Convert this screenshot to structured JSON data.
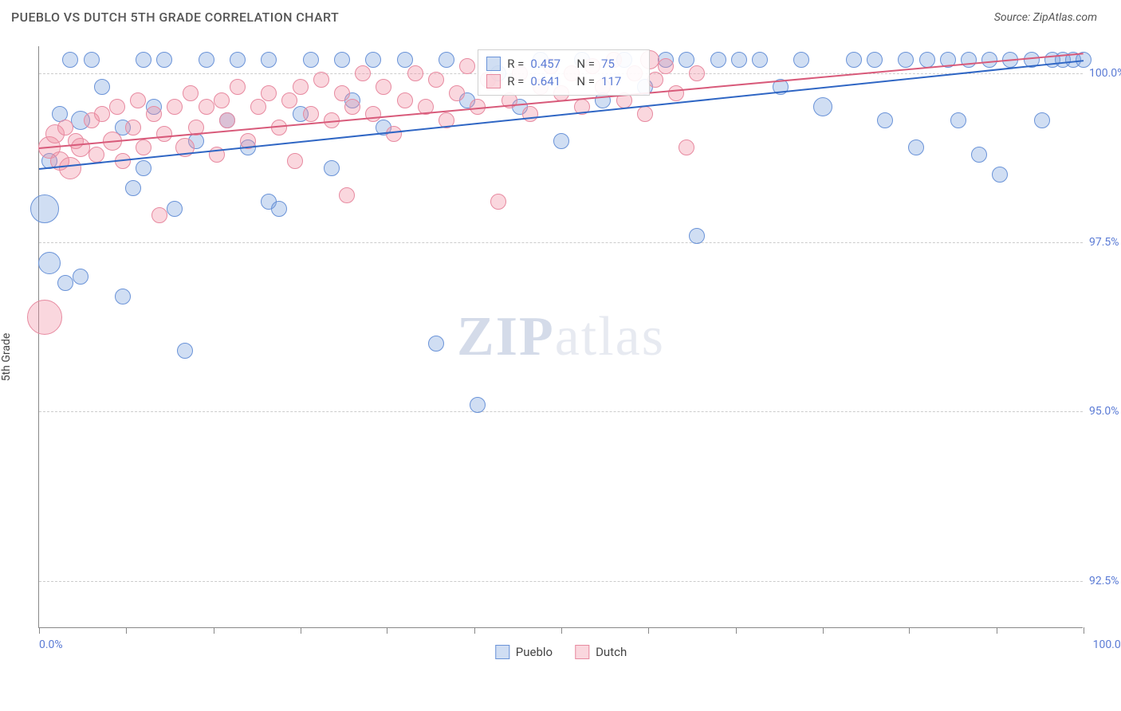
{
  "header": {
    "title": "PUEBLO VS DUTCH 5TH GRADE CORRELATION CHART",
    "source": "Source: ZipAtlas.com"
  },
  "ylabel": "5th Grade",
  "watermark": {
    "bold": "ZIP",
    "rest": "atlas"
  },
  "chart": {
    "type": "scatter",
    "background_color": "#ffffff",
    "grid_color": "#cccccc",
    "axis_color": "#888888",
    "label_color": "#5b7bd5",
    "xlim": [
      0,
      100
    ],
    "ylim": [
      91.8,
      100.4
    ],
    "x_end_labels": {
      "min": "0.0%",
      "max": "100.0%"
    },
    "y_ticks": [
      {
        "v": 100.0,
        "label": "100.0%"
      },
      {
        "v": 97.5,
        "label": "97.5%"
      },
      {
        "v": 95.0,
        "label": "95.0%"
      },
      {
        "v": 92.5,
        "label": "92.5%"
      }
    ],
    "x_tick_positions": [
      0,
      8.3,
      16.7,
      25,
      33.3,
      41.7,
      50,
      58.3,
      66.7,
      75,
      83.3,
      91.7,
      100
    ],
    "series": [
      {
        "name": "Pueblo",
        "fill": "rgba(120,160,220,0.35)",
        "stroke": "#6a93d8",
        "trend_color": "#2f66c4",
        "trend": {
          "x0": 0,
          "y0": 98.6,
          "x1": 100,
          "y1": 100.2
        },
        "R": "0.457",
        "N": "75",
        "points": [
          {
            "x": 0.5,
            "y": 98.0,
            "r": 18
          },
          {
            "x": 1,
            "y": 98.7,
            "r": 10
          },
          {
            "x": 1,
            "y": 97.2,
            "r": 14
          },
          {
            "x": 2,
            "y": 99.4,
            "r": 10
          },
          {
            "x": 2.5,
            "y": 96.9,
            "r": 10
          },
          {
            "x": 3,
            "y": 100.2,
            "r": 10
          },
          {
            "x": 4,
            "y": 99.3,
            "r": 12
          },
          {
            "x": 4,
            "y": 97.0,
            "r": 10
          },
          {
            "x": 5,
            "y": 100.2,
            "r": 10
          },
          {
            "x": 6,
            "y": 99.8,
            "r": 10
          },
          {
            "x": 8,
            "y": 96.7,
            "r": 10
          },
          {
            "x": 8,
            "y": 99.2,
            "r": 10
          },
          {
            "x": 9,
            "y": 98.3,
            "r": 10
          },
          {
            "x": 10,
            "y": 100.2,
            "r": 10
          },
          {
            "x": 10,
            "y": 98.6,
            "r": 10
          },
          {
            "x": 11,
            "y": 99.5,
            "r": 10
          },
          {
            "x": 12,
            "y": 100.2,
            "r": 10
          },
          {
            "x": 13,
            "y": 98.0,
            "r": 10
          },
          {
            "x": 14,
            "y": 95.9,
            "r": 10
          },
          {
            "x": 15,
            "y": 99.0,
            "r": 10
          },
          {
            "x": 16,
            "y": 100.2,
            "r": 10
          },
          {
            "x": 18,
            "y": 99.3,
            "r": 10
          },
          {
            "x": 19,
            "y": 100.2,
            "r": 10
          },
          {
            "x": 20,
            "y": 98.9,
            "r": 10
          },
          {
            "x": 22,
            "y": 98.1,
            "r": 10
          },
          {
            "x": 22,
            "y": 100.2,
            "r": 10
          },
          {
            "x": 23,
            "y": 98.0,
            "r": 10
          },
          {
            "x": 25,
            "y": 99.4,
            "r": 10
          },
          {
            "x": 26,
            "y": 100.2,
            "r": 10
          },
          {
            "x": 28,
            "y": 98.6,
            "r": 10
          },
          {
            "x": 29,
            "y": 100.2,
            "r": 10
          },
          {
            "x": 30,
            "y": 99.6,
            "r": 10
          },
          {
            "x": 32,
            "y": 100.2,
            "r": 10
          },
          {
            "x": 33,
            "y": 99.2,
            "r": 10
          },
          {
            "x": 35,
            "y": 100.2,
            "r": 10
          },
          {
            "x": 38,
            "y": 96.0,
            "r": 10
          },
          {
            "x": 39,
            "y": 100.2,
            "r": 10
          },
          {
            "x": 41,
            "y": 99.6,
            "r": 10
          },
          {
            "x": 42,
            "y": 95.1,
            "r": 10
          },
          {
            "x": 44,
            "y": 100.0,
            "r": 10
          },
          {
            "x": 46,
            "y": 99.5,
            "r": 10
          },
          {
            "x": 48,
            "y": 100.2,
            "r": 10
          },
          {
            "x": 50,
            "y": 99.0,
            "r": 10
          },
          {
            "x": 52,
            "y": 100.2,
            "r": 10
          },
          {
            "x": 54,
            "y": 99.6,
            "r": 10
          },
          {
            "x": 56,
            "y": 100.2,
            "r": 10
          },
          {
            "x": 58,
            "y": 99.8,
            "r": 10
          },
          {
            "x": 60,
            "y": 100.2,
            "r": 10
          },
          {
            "x": 62,
            "y": 100.2,
            "r": 10
          },
          {
            "x": 63,
            "y": 97.6,
            "r": 10
          },
          {
            "x": 65,
            "y": 100.2,
            "r": 10
          },
          {
            "x": 67,
            "y": 100.2,
            "r": 10
          },
          {
            "x": 69,
            "y": 100.2,
            "r": 10
          },
          {
            "x": 71,
            "y": 99.8,
            "r": 10
          },
          {
            "x": 73,
            "y": 100.2,
            "r": 10
          },
          {
            "x": 75,
            "y": 99.5,
            "r": 12
          },
          {
            "x": 78,
            "y": 100.2,
            "r": 10
          },
          {
            "x": 80,
            "y": 100.2,
            "r": 10
          },
          {
            "x": 81,
            "y": 99.3,
            "r": 10
          },
          {
            "x": 83,
            "y": 100.2,
            "r": 10
          },
          {
            "x": 84,
            "y": 98.9,
            "r": 10
          },
          {
            "x": 85,
            "y": 100.2,
            "r": 10
          },
          {
            "x": 87,
            "y": 100.2,
            "r": 10
          },
          {
            "x": 88,
            "y": 99.3,
            "r": 10
          },
          {
            "x": 89,
            "y": 100.2,
            "r": 10
          },
          {
            "x": 90,
            "y": 98.8,
            "r": 10
          },
          {
            "x": 91,
            "y": 100.2,
            "r": 10
          },
          {
            "x": 92,
            "y": 98.5,
            "r": 10
          },
          {
            "x": 93,
            "y": 100.2,
            "r": 10
          },
          {
            "x": 95,
            "y": 100.2,
            "r": 10
          },
          {
            "x": 96,
            "y": 99.3,
            "r": 10
          },
          {
            "x": 97,
            "y": 100.2,
            "r": 10
          },
          {
            "x": 98,
            "y": 100.2,
            "r": 10
          },
          {
            "x": 99,
            "y": 100.2,
            "r": 10
          },
          {
            "x": 100,
            "y": 100.2,
            "r": 10
          }
        ]
      },
      {
        "name": "Dutch",
        "fill": "rgba(240,140,160,0.35)",
        "stroke": "#e78aa0",
        "trend_color": "#d85a7a",
        "trend": {
          "x0": 0,
          "y0": 98.9,
          "x1": 100,
          "y1": 100.3
        },
        "R": "0.641",
        "N": "117",
        "points": [
          {
            "x": 0.5,
            "y": 96.4,
            "r": 22
          },
          {
            "x": 1,
            "y": 98.9,
            "r": 14
          },
          {
            "x": 1.5,
            "y": 99.1,
            "r": 12
          },
          {
            "x": 2,
            "y": 98.7,
            "r": 12
          },
          {
            "x": 2.5,
            "y": 99.2,
            "r": 10
          },
          {
            "x": 3,
            "y": 98.6,
            "r": 14
          },
          {
            "x": 3.5,
            "y": 99.0,
            "r": 10
          },
          {
            "x": 4,
            "y": 98.9,
            "r": 12
          },
          {
            "x": 5,
            "y": 99.3,
            "r": 10
          },
          {
            "x": 5.5,
            "y": 98.8,
            "r": 10
          },
          {
            "x": 6,
            "y": 99.4,
            "r": 10
          },
          {
            "x": 7,
            "y": 99.0,
            "r": 12
          },
          {
            "x": 7.5,
            "y": 99.5,
            "r": 10
          },
          {
            "x": 8,
            "y": 98.7,
            "r": 10
          },
          {
            "x": 9,
            "y": 99.2,
            "r": 10
          },
          {
            "x": 9.5,
            "y": 99.6,
            "r": 10
          },
          {
            "x": 10,
            "y": 98.9,
            "r": 10
          },
          {
            "x": 11,
            "y": 99.4,
            "r": 10
          },
          {
            "x": 11.5,
            "y": 97.9,
            "r": 10
          },
          {
            "x": 12,
            "y": 99.1,
            "r": 10
          },
          {
            "x": 13,
            "y": 99.5,
            "r": 10
          },
          {
            "x": 14,
            "y": 98.9,
            "r": 12
          },
          {
            "x": 14.5,
            "y": 99.7,
            "r": 10
          },
          {
            "x": 15,
            "y": 99.2,
            "r": 10
          },
          {
            "x": 16,
            "y": 99.5,
            "r": 10
          },
          {
            "x": 17,
            "y": 98.8,
            "r": 10
          },
          {
            "x": 17.5,
            "y": 99.6,
            "r": 10
          },
          {
            "x": 18,
            "y": 99.3,
            "r": 10
          },
          {
            "x": 19,
            "y": 99.8,
            "r": 10
          },
          {
            "x": 20,
            "y": 99.0,
            "r": 10
          },
          {
            "x": 21,
            "y": 99.5,
            "r": 10
          },
          {
            "x": 22,
            "y": 99.7,
            "r": 10
          },
          {
            "x": 23,
            "y": 99.2,
            "r": 10
          },
          {
            "x": 24,
            "y": 99.6,
            "r": 10
          },
          {
            "x": 24.5,
            "y": 98.7,
            "r": 10
          },
          {
            "x": 25,
            "y": 99.8,
            "r": 10
          },
          {
            "x": 26,
            "y": 99.4,
            "r": 10
          },
          {
            "x": 27,
            "y": 99.9,
            "r": 10
          },
          {
            "x": 28,
            "y": 99.3,
            "r": 10
          },
          {
            "x": 29,
            "y": 99.7,
            "r": 10
          },
          {
            "x": 29.5,
            "y": 98.2,
            "r": 10
          },
          {
            "x": 30,
            "y": 99.5,
            "r": 10
          },
          {
            "x": 31,
            "y": 100.0,
            "r": 10
          },
          {
            "x": 32,
            "y": 99.4,
            "r": 10
          },
          {
            "x": 33,
            "y": 99.8,
            "r": 10
          },
          {
            "x": 34,
            "y": 99.1,
            "r": 10
          },
          {
            "x": 35,
            "y": 99.6,
            "r": 10
          },
          {
            "x": 36,
            "y": 100.0,
            "r": 10
          },
          {
            "x": 37,
            "y": 99.5,
            "r": 10
          },
          {
            "x": 38,
            "y": 99.9,
            "r": 10
          },
          {
            "x": 39,
            "y": 99.3,
            "r": 10
          },
          {
            "x": 40,
            "y": 99.7,
            "r": 10
          },
          {
            "x": 41,
            "y": 100.1,
            "r": 10
          },
          {
            "x": 42,
            "y": 99.5,
            "r": 10
          },
          {
            "x": 43,
            "y": 99.9,
            "r": 10
          },
          {
            "x": 44,
            "y": 98.1,
            "r": 10
          },
          {
            "x": 45,
            "y": 99.6,
            "r": 10
          },
          {
            "x": 46,
            "y": 100.0,
            "r": 10
          },
          {
            "x": 47,
            "y": 99.4,
            "r": 10
          },
          {
            "x": 48,
            "y": 99.8,
            "r": 10
          },
          {
            "x": 49,
            "y": 100.1,
            "r": 10
          },
          {
            "x": 50,
            "y": 99.7,
            "r": 10
          },
          {
            "x": 51,
            "y": 100.0,
            "r": 10
          },
          {
            "x": 52,
            "y": 99.5,
            "r": 10
          },
          {
            "x": 53,
            "y": 100.1,
            "r": 10
          },
          {
            "x": 54,
            "y": 99.8,
            "r": 10
          },
          {
            "x": 55,
            "y": 100.2,
            "r": 10
          },
          {
            "x": 56,
            "y": 99.6,
            "r": 10
          },
          {
            "x": 57,
            "y": 100.0,
            "r": 10
          },
          {
            "x": 58,
            "y": 99.4,
            "r": 10
          },
          {
            "x": 58.5,
            "y": 100.2,
            "r": 12
          },
          {
            "x": 59,
            "y": 99.9,
            "r": 10
          },
          {
            "x": 60,
            "y": 100.1,
            "r": 10
          },
          {
            "x": 61,
            "y": 99.7,
            "r": 10
          },
          {
            "x": 62,
            "y": 98.9,
            "r": 10
          },
          {
            "x": 63,
            "y": 100.0,
            "r": 10
          }
        ]
      }
    ],
    "legend_bottom": [
      {
        "label": "Pueblo",
        "fill": "rgba(120,160,220,0.35)",
        "stroke": "#6a93d8"
      },
      {
        "label": "Dutch",
        "fill": "rgba(240,140,160,0.35)",
        "stroke": "#e78aa0"
      }
    ]
  }
}
